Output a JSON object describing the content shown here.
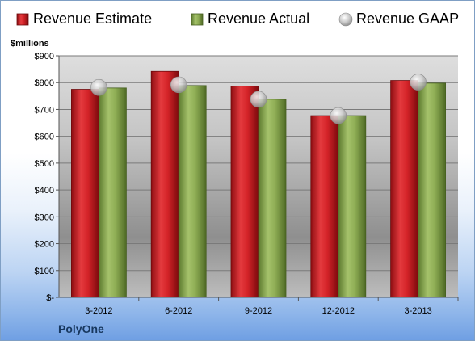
{
  "chart_data": {
    "type": "bar",
    "title": "",
    "unit_label": "$millions",
    "company": "PolyOne",
    "categories": [
      "3-2012",
      "6-2012",
      "9-2012",
      "12-2012",
      "3-2013"
    ],
    "series": [
      {
        "name": "Revenue Estimate",
        "kind": "bar",
        "color": "#d8262b",
        "values": [
          775,
          842,
          787,
          677,
          808
        ]
      },
      {
        "name": "Revenue Actual",
        "kind": "bar",
        "color": "#8fae55",
        "values": [
          780,
          789,
          738,
          677,
          798
        ]
      },
      {
        "name": "Revenue GAAP",
        "kind": "marker",
        "color": "#c8c8c8",
        "values": [
          782,
          792,
          738,
          677,
          802
        ]
      }
    ],
    "ylim": [
      0,
      900
    ],
    "yticks": [
      0,
      100,
      200,
      300,
      400,
      500,
      600,
      700,
      800,
      900
    ],
    "ytick_labels": [
      "$-",
      "$100",
      "$200",
      "$300",
      "$400",
      "$500",
      "$600",
      "$700",
      "$800",
      "$900"
    ],
    "grid": true,
    "legend_position": "top"
  }
}
